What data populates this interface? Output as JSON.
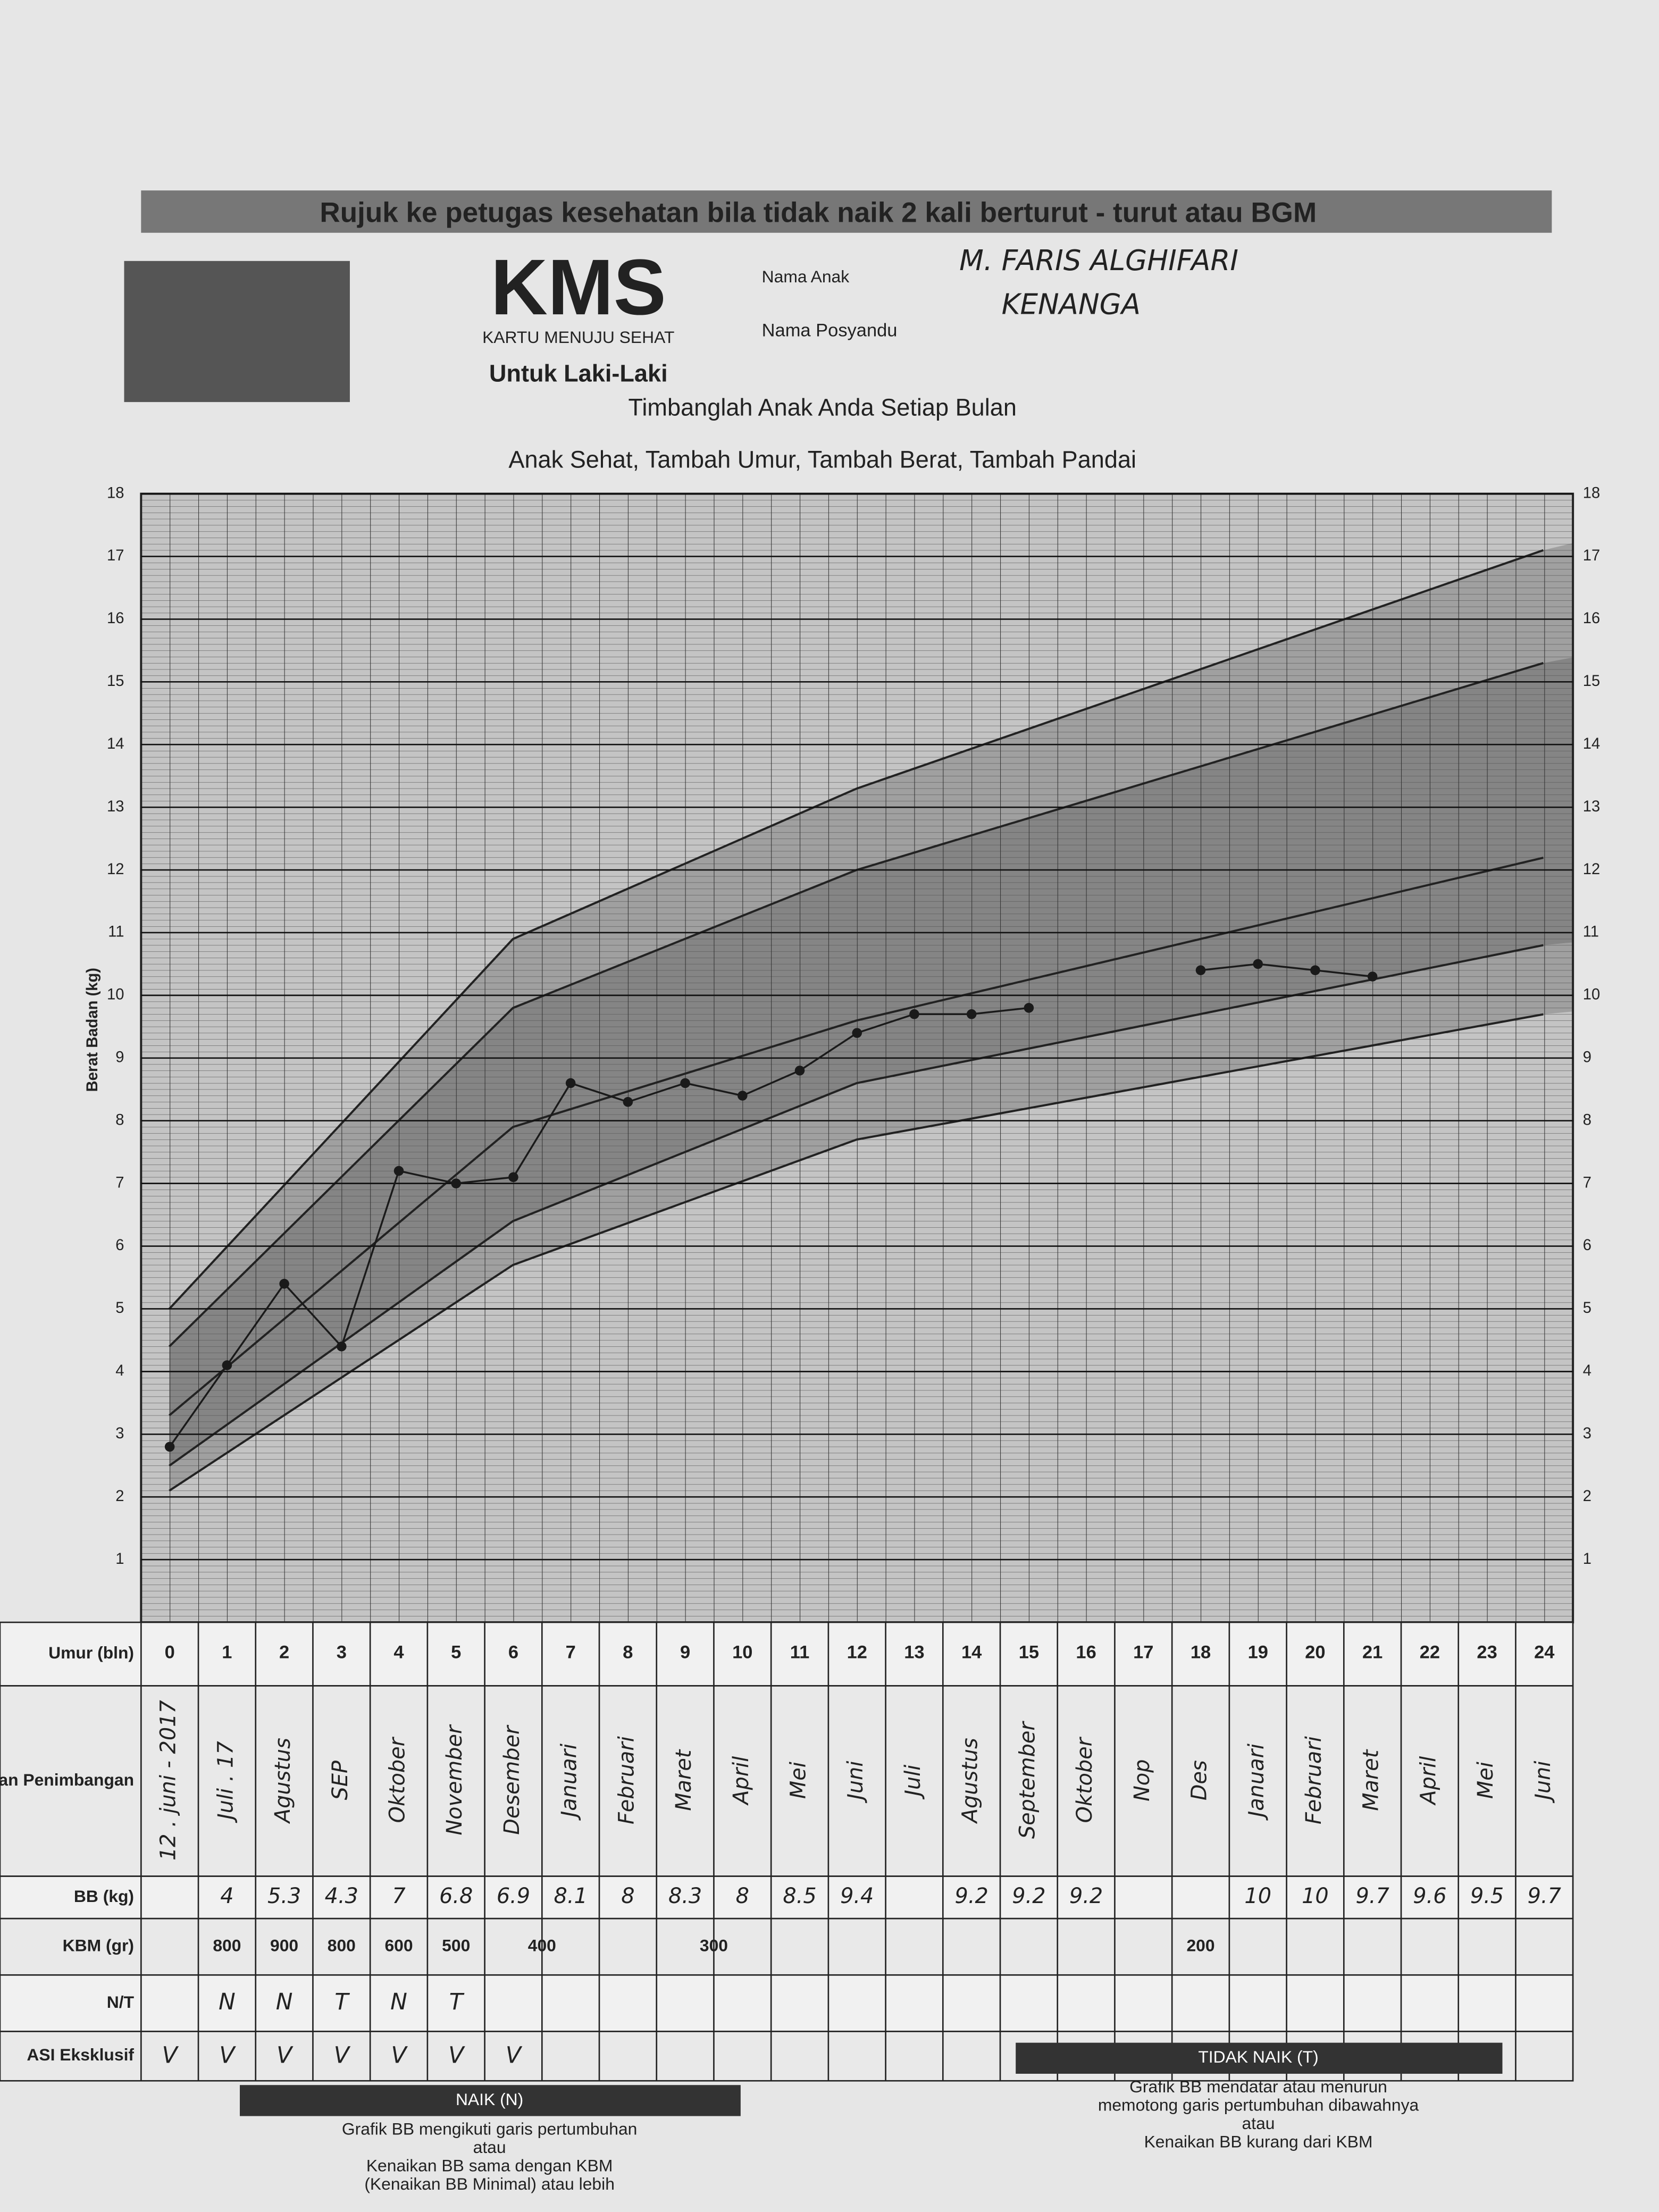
{
  "header": {
    "top_banner": "Rujuk ke petugas kesehatan bila tidak naik 2 kali berturut - turut atau BGM",
    "brand": "KMS",
    "brand_subtitle": "KARTU MENUJU SEHAT",
    "gender": "Untuk Laki-Laki",
    "child_name_label": "Nama Anak",
    "child_name": "M. FARIS ALGHIFARI",
    "posyandu_label": "Nama Posyandu",
    "posyandu": "KENANGA"
  },
  "chart_data": {
    "type": "line",
    "title": "Timbanglah Anak Anda Setiap Bulan",
    "subtitle": "Anak Sehat, Tambah Umur, Tambah Berat, Tambah Pandai",
    "y_label": "Berat Badan (kg)",
    "x": [
      0,
      1,
      2,
      3,
      4,
      5,
      6,
      7,
      8,
      9,
      10,
      11,
      12,
      13,
      14,
      15,
      16,
      17,
      18,
      19,
      20,
      21,
      22,
      23,
      24
    ],
    "values": [
      2.8,
      4.1,
      5.4,
      4.4,
      7.2,
      7.0,
      7.1,
      8.6,
      8.3,
      8.6,
      8.4,
      8.8,
      9.4,
      9.7,
      9.7,
      9.8,
      null,
      null,
      10.4,
      10.5,
      10.4,
      10.3,
      null,
      null,
      null
    ],
    "color": "#1a1a1a",
    "xlim": [
      0,
      24
    ],
    "ylim": [
      0,
      18
    ],
    "yticks": [
      1,
      2,
      3,
      4,
      5,
      6,
      7,
      8,
      9,
      10,
      11,
      12,
      13,
      14,
      15,
      16,
      17,
      18
    ],
    "grid": true
  },
  "table": {
    "row_labels": [
      "Umur (bln)",
      "Bulan Penimbangan",
      "BB (kg)",
      "KBM (gr)",
      "N/T",
      "ASI Eksklusif"
    ],
    "bulan": [
      "12 . juni - 2017",
      "Juli . 17",
      "Agustus",
      "SEP",
      "Oktober",
      "November",
      "Desember",
      "Januari",
      "Februari",
      "Maret",
      "April",
      "Mei",
      "Juni",
      "Juli",
      "Agustus",
      "September",
      "Oktober",
      "Nop",
      "Des",
      "Januari",
      "Februari",
      "Maret",
      "April",
      "Mei",
      "Juni"
    ],
    "bb": [
      null,
      4,
      5.3,
      4.3,
      7,
      6.8,
      6.9,
      8.1,
      8,
      8.3,
      8,
      8.5,
      9.4,
      null,
      9.2,
      9.2,
      9.2,
      null,
      null,
      10.0,
      10,
      9.7,
      9.6,
      9.5,
      9.7
    ],
    "kbm": [
      {
        "value": 800,
        "first": 1,
        "last": 1
      },
      {
        "value": 900,
        "first": 2,
        "last": 2
      },
      {
        "value": 800,
        "first": 3,
        "last": 3
      },
      {
        "value": 600,
        "first": 4,
        "last": 4
      },
      {
        "value": 500,
        "first": 5,
        "last": 5
      },
      {
        "value": 400,
        "first": 6,
        "last": 7
      },
      {
        "value": 300,
        "first": 8,
        "last": 11
      },
      {
        "value": 200,
        "first": 12,
        "last": 24
      }
    ],
    "nt": [
      null,
      "N",
      "N",
      "T",
      "N",
      "T"
    ],
    "asi": [
      "V",
      "V",
      "V",
      "V",
      "V",
      "V",
      "V"
    ]
  },
  "footer": {
    "naik_title": "NAIK (N)",
    "naik_lines": [
      "Grafik BB mengikuti garis pertumbuhan",
      "atau",
      "Kenaikan BB sama dengan KBM",
      "(Kenaikan BB Minimal) atau lebih"
    ],
    "tidak_title": "TIDAK NAIK (T)",
    "tidak_lines": [
      "Grafik BB mendatar atau menurun",
      "memotong garis pertumbuhan dibawahnya",
      "atau",
      "Kenaikan BB kurang dari KBM"
    ]
  }
}
